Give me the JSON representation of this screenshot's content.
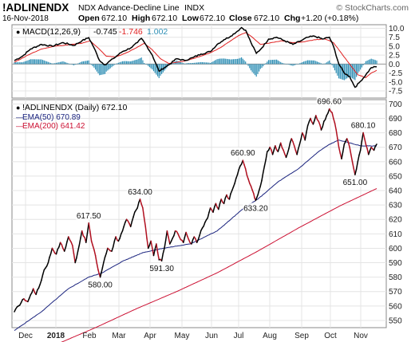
{
  "header": {
    "symbol": "!ADLINENDX",
    "name": "NDX Advance-Decline Line",
    "exchange": "INDX",
    "date": "16-Nov-2018",
    "open_label": "Open",
    "open": "672.10",
    "high_label": "High",
    "high": "672.10",
    "low_label": "Low",
    "low": "672.10",
    "close_label": "Close",
    "close": "672.10",
    "chg_label": "Chg",
    "chg": "+1.20 (+0.18%)",
    "watermark": "© StockCharts.com"
  },
  "macd_panel": {
    "label": "MACD(12,26,9)",
    "macd_value": "-0.745",
    "signal_value": "-1.746",
    "hist_value": "1.002",
    "colors": {
      "macd": "#000000",
      "signal": "#e02020",
      "histogram": "#2f8fb5"
    }
  },
  "price_panel": {
    "label": "!ADLINENDX (Daily) 672.10",
    "ema50_label": "EMA(50) 670.89",
    "ema200_label": "EMA(200) 641.42",
    "colors": {
      "price_up": "#000000",
      "price_down": "#b01020",
      "ema50": "#1a237e",
      "ema200": "#cc1133"
    }
  },
  "chart_data": [
    {
      "type": "line",
      "panel": "price",
      "x_labels": [
        "Dec",
        "2018",
        "Feb",
        "Mar",
        "Apr",
        "May",
        "Jun",
        "Jul",
        "Aug",
        "Sep",
        "Oct",
        "Nov"
      ],
      "y_ticks": [
        550,
        560,
        570,
        580,
        590,
        600,
        610,
        620,
        630,
        640,
        650,
        660,
        670,
        680,
        690,
        700
      ],
      "ylim": [
        545,
        703
      ],
      "grid": true,
      "legend": "top-left",
      "price_keypoints": [
        [
          0,
          556
        ],
        [
          3,
          560
        ],
        [
          7,
          565
        ],
        [
          10,
          563
        ],
        [
          14,
          572
        ],
        [
          16,
          568
        ],
        [
          19,
          575
        ],
        [
          22,
          585
        ],
        [
          25,
          590
        ],
        [
          28,
          600
        ],
        [
          31,
          596
        ],
        [
          34,
          604
        ],
        [
          37,
          598
        ],
        [
          40,
          608
        ],
        [
          43,
          602
        ],
        [
          45,
          590
        ],
        [
          47,
          598
        ],
        [
          50,
          612
        ],
        [
          53,
          604
        ],
        [
          55,
          617.5
        ],
        [
          57,
          605
        ],
        [
          60,
          595
        ],
        [
          62,
          585
        ],
        [
          63.5,
          580
        ],
        [
          66,
          590
        ],
        [
          69,
          600
        ],
        [
          72,
          598
        ],
        [
          75,
          608
        ],
        [
          77,
          605
        ],
        [
          80,
          612
        ],
        [
          83,
          620
        ],
        [
          86,
          615
        ],
        [
          89,
          625
        ],
        [
          91,
          628
        ],
        [
          93,
          634
        ],
        [
          95,
          628
        ],
        [
          97,
          615
        ],
        [
          99,
          600
        ],
        [
          101,
          605
        ],
        [
          103,
          595
        ],
        [
          105,
          603
        ],
        [
          107,
          592
        ],
        [
          109,
          591.3
        ],
        [
          111,
          600
        ],
        [
          113,
          612
        ],
        [
          115,
          603
        ],
        [
          117,
          607
        ],
        [
          119,
          612
        ],
        [
          121,
          610
        ],
        [
          123,
          606
        ],
        [
          125,
          604
        ],
        [
          127,
          611
        ],
        [
          129,
          606
        ],
        [
          131,
          603
        ],
        [
          133,
          608
        ],
        [
          135,
          604
        ],
        [
          137,
          609
        ],
        [
          139,
          614
        ],
        [
          141,
          618
        ],
        [
          143,
          621
        ],
        [
          145,
          628
        ],
        [
          147,
          625
        ],
        [
          149,
          631
        ],
        [
          151,
          627
        ],
        [
          153,
          634
        ],
        [
          155,
          631
        ],
        [
          157,
          637
        ],
        [
          159,
          634
        ],
        [
          161,
          640
        ],
        [
          163,
          645
        ],
        [
          165,
          651
        ],
        [
          167,
          657
        ],
        [
          169,
          660.9
        ],
        [
          171,
          655
        ],
        [
          173,
          648
        ],
        [
          175,
          643
        ],
        [
          177,
          638
        ],
        [
          178.5,
          633.2
        ],
        [
          181,
          640
        ],
        [
          183,
          647
        ],
        [
          185,
          657
        ],
        [
          187,
          667
        ],
        [
          189,
          670
        ],
        [
          191,
          665
        ],
        [
          193,
          671
        ],
        [
          195,
          667
        ],
        [
          197,
          673
        ],
        [
          199,
          668
        ],
        [
          201,
          663
        ],
        [
          203,
          669
        ],
        [
          205,
          676
        ],
        [
          207,
          671
        ],
        [
          209,
          665
        ],
        [
          211,
          672
        ],
        [
          213,
          680
        ],
        [
          215,
          675
        ],
        [
          217,
          685
        ],
        [
          219,
          690
        ],
        [
          221,
          686
        ],
        [
          223,
          692
        ],
        [
          225,
          688
        ],
        [
          227,
          682
        ],
        [
          229,
          688
        ],
        [
          231,
          692
        ],
        [
          233,
          696.6
        ],
        [
          235,
          694
        ],
        [
          236,
          690
        ],
        [
          238,
          682
        ],
        [
          240,
          670
        ],
        [
          242,
          662
        ],
        [
          244,
          672
        ],
        [
          246,
          676
        ],
        [
          248,
          670
        ],
        [
          250,
          660
        ],
        [
          252,
          651
        ],
        [
          254,
          660
        ],
        [
          256,
          668
        ],
        [
          258,
          680.1
        ],
        [
          260,
          672
        ],
        [
          262,
          665
        ],
        [
          264,
          670
        ],
        [
          266,
          668
        ],
        [
          268,
          672.1
        ]
      ],
      "ema50_keypoints": [
        [
          0,
          543
        ],
        [
          20,
          556
        ],
        [
          40,
          572
        ],
        [
          55,
          580
        ],
        [
          65,
          583
        ],
        [
          80,
          591
        ],
        [
          95,
          597
        ],
        [
          110,
          600
        ],
        [
          130,
          603
        ],
        [
          150,
          612
        ],
        [
          170,
          628
        ],
        [
          180,
          634
        ],
        [
          195,
          646
        ],
        [
          210,
          655
        ],
        [
          225,
          667
        ],
        [
          233,
          672
        ],
        [
          240,
          675
        ],
        [
          248,
          673
        ],
        [
          256,
          671
        ],
        [
          268,
          670.89
        ]
      ],
      "ema200_keypoints": [
        [
          0,
          525
        ],
        [
          30,
          533
        ],
        [
          60,
          545
        ],
        [
          90,
          558
        ],
        [
          120,
          570
        ],
        [
          150,
          583
        ],
        [
          180,
          598
        ],
        [
          210,
          614
        ],
        [
          240,
          629
        ],
        [
          268,
          641.42
        ]
      ],
      "annotations": [
        {
          "label": "617.50",
          "x": 55,
          "y": 617.5,
          "pos": "above"
        },
        {
          "label": "580.00",
          "x": 63.5,
          "y": 580,
          "pos": "below"
        },
        {
          "label": "634.00",
          "x": 93,
          "y": 634,
          "pos": "above"
        },
        {
          "label": "591.30",
          "x": 109,
          "y": 591.3,
          "pos": "below"
        },
        {
          "label": "660.90",
          "x": 169,
          "y": 660.9,
          "pos": "above"
        },
        {
          "label": "633.20",
          "x": 178.5,
          "y": 633.2,
          "pos": "below"
        },
        {
          "label": "696.60",
          "x": 233,
          "y": 696.6,
          "pos": "above"
        },
        {
          "label": "651.00",
          "x": 252,
          "y": 651,
          "pos": "below"
        },
        {
          "label": "680.10",
          "x": 258,
          "y": 680.1,
          "pos": "above"
        }
      ]
    },
    {
      "type": "line",
      "panel": "macd",
      "y_ticks": [
        -7.5,
        -5.0,
        -2.5,
        0.0,
        2.5,
        5.0,
        7.5,
        10.0
      ],
      "y_tick_labels": [
        "-7.5",
        "-5.0",
        "-2.5",
        "0.0",
        "2.5",
        "5.0",
        "7.5",
        "10.0"
      ],
      "ylim": [
        -9.5,
        11
      ],
      "grid": true,
      "macd_keypoints": [
        [
          0,
          1
        ],
        [
          6,
          2.2
        ],
        [
          12,
          4.2
        ],
        [
          20,
          5.5
        ],
        [
          28,
          5
        ],
        [
          36,
          6
        ],
        [
          44,
          5.2
        ],
        [
          50,
          6.5
        ],
        [
          55,
          7.4
        ],
        [
          59,
          4.5
        ],
        [
          63,
          1
        ],
        [
          67,
          -0.2
        ],
        [
          73,
          1.5
        ],
        [
          80,
          3.5
        ],
        [
          86,
          4.5
        ],
        [
          91,
          6
        ],
        [
          94,
          7.2
        ],
        [
          98,
          5
        ],
        [
          102,
          2.5
        ],
        [
          107,
          -2
        ],
        [
          111,
          -1
        ],
        [
          115,
          0
        ],
        [
          120,
          1.5
        ],
        [
          126,
          1
        ],
        [
          132,
          1.8
        ],
        [
          138,
          2.8
        ],
        [
          145,
          3.5
        ],
        [
          150,
          5.5
        ],
        [
          155,
          6.8
        ],
        [
          160,
          7.8
        ],
        [
          165,
          9.2
        ],
        [
          168,
          10.2
        ],
        [
          171,
          9.5
        ],
        [
          175,
          6
        ],
        [
          179,
          3
        ],
        [
          183,
          4.5
        ],
        [
          188,
          7
        ],
        [
          194,
          7.5
        ],
        [
          200,
          6.5
        ],
        [
          206,
          5.5
        ],
        [
          212,
          6.5
        ],
        [
          217,
          7.5
        ],
        [
          222,
          7.8
        ],
        [
          228,
          7
        ],
        [
          233,
          7.5
        ],
        [
          236,
          5
        ],
        [
          240,
          0
        ],
        [
          244,
          -2.5
        ],
        [
          248,
          -3.5
        ],
        [
          252,
          -6.5
        ],
        [
          256,
          -4.8
        ],
        [
          260,
          -3
        ],
        [
          264,
          -1
        ],
        [
          268,
          -0.745
        ]
      ],
      "signal_keypoints": [
        [
          0,
          0.5
        ],
        [
          10,
          2.5
        ],
        [
          20,
          4.2
        ],
        [
          30,
          5
        ],
        [
          40,
          5.4
        ],
        [
          50,
          5.8
        ],
        [
          56,
          6.5
        ],
        [
          62,
          4.5
        ],
        [
          68,
          2.2
        ],
        [
          75,
          2
        ],
        [
          82,
          3
        ],
        [
          90,
          4.5
        ],
        [
          96,
          5.8
        ],
        [
          102,
          4
        ],
        [
          108,
          1.5
        ],
        [
          114,
          0.2
        ],
        [
          120,
          0.5
        ],
        [
          128,
          1
        ],
        [
          136,
          2
        ],
        [
          144,
          3
        ],
        [
          152,
          4.5
        ],
        [
          160,
          6.5
        ],
        [
          166,
          8
        ],
        [
          171,
          8.8
        ],
        [
          176,
          7.5
        ],
        [
          182,
          5.5
        ],
        [
          190,
          6
        ],
        [
          198,
          6.5
        ],
        [
          206,
          6
        ],
        [
          214,
          6.2
        ],
        [
          222,
          6.8
        ],
        [
          230,
          7
        ],
        [
          236,
          6
        ],
        [
          242,
          3
        ],
        [
          248,
          0
        ],
        [
          254,
          -3
        ],
        [
          260,
          -3.8
        ],
        [
          264,
          -2.5
        ],
        [
          268,
          -1.746
        ]
      ]
    }
  ]
}
